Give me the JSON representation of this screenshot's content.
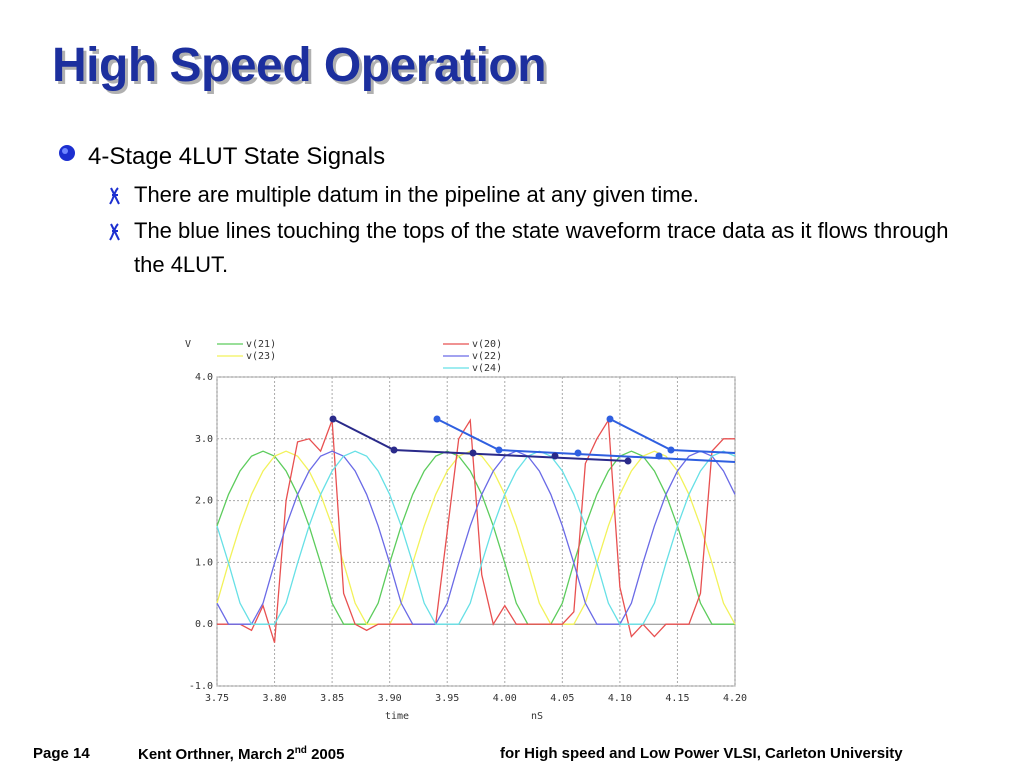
{
  "header": {
    "title": "High Speed Operation"
  },
  "bullets": [
    {
      "text": "4-Stage 4LUT State Signals",
      "subbullets": [
        "There are multiple datum in the pipeline at any given time.",
        "The blue lines touching the tops of the state waveform trace data as it flows through the 4LUT."
      ]
    }
  ],
  "footer": {
    "page": "Page 14",
    "author": "Kent Orthner, March 2",
    "author_sup": "nd",
    "author_year": "2005",
    "event": "for High speed and Low Power VLSI, Carleton University"
  },
  "chart_data": {
    "type": "line",
    "ylabel": "V",
    "xlabel": "time",
    "xlabel_unit": "nS",
    "xlim": [
      3.75,
      4.2
    ],
    "ylim": [
      -1,
      4
    ],
    "xticks": [
      3.75,
      {
        "value": 3.8,
        "label": "3.80"
      },
      3.85,
      {
        "value": 3.9,
        "label": "3.90"
      },
      3.95,
      {
        "value": 4.0,
        "label": "4.00"
      },
      4.05,
      {
        "value": 4.1,
        "label": "4.10"
      },
      4.15,
      {
        "value": 4.2,
        "label": "4.20"
      }
    ],
    "yticks": [
      {
        "value": -1,
        "label": "-1.0"
      },
      {
        "value": 0,
        "label": "0.0"
      },
      {
        "value": 1,
        "label": "1.0"
      },
      {
        "value": 2,
        "label": "2.0"
      },
      {
        "value": 3,
        "label": "3.0"
      },
      {
        "value": 4,
        "label": "4.0"
      }
    ],
    "grid": true,
    "x": [
      3.75,
      3.76,
      3.77,
      3.78,
      3.79,
      3.8,
      3.81,
      3.82,
      3.83,
      3.84,
      3.85,
      3.86,
      3.87,
      3.88,
      3.89,
      3.9,
      3.91,
      3.92,
      3.93,
      3.94,
      3.95,
      3.96,
      3.97,
      3.98,
      3.99,
      4.0,
      4.01,
      4.02,
      4.03,
      4.04,
      4.05,
      4.06,
      4.07,
      4.08,
      4.09,
      4.1,
      4.11,
      4.12,
      4.13,
      4.14,
      4.15,
      4.16,
      4.17,
      4.18,
      4.19,
      4.2
    ],
    "series": [
      {
        "name": "v(21)",
        "color": "#5ccc5c",
        "values": [
          1.59,
          2.1,
          2.48,
          2.72,
          2.8,
          2.72,
          2.48,
          2.1,
          1.59,
          0.99,
          0.34,
          0,
          0,
          0,
          0.34,
          0.99,
          1.59,
          2.1,
          2.48,
          2.72,
          2.8,
          2.72,
          2.48,
          2.1,
          1.59,
          0.99,
          0.34,
          0,
          0,
          0,
          0.34,
          0.99,
          1.59,
          2.1,
          2.48,
          2.72,
          2.8,
          2.72,
          2.48,
          2.1,
          1.59,
          0.99,
          0.34,
          0,
          0,
          0
        ]
      },
      {
        "name": "v(23)",
        "color": "#f2f25a",
        "values": [
          0.34,
          0.99,
          1.59,
          2.1,
          2.48,
          2.72,
          2.8,
          2.72,
          2.48,
          2.1,
          1.59,
          0.99,
          0.34,
          0,
          0,
          0,
          0.34,
          0.99,
          1.59,
          2.1,
          2.48,
          2.72,
          2.8,
          2.72,
          2.48,
          2.1,
          1.59,
          0.99,
          0.34,
          0,
          0,
          0,
          0.34,
          0.99,
          1.59,
          2.1,
          2.48,
          2.72,
          2.8,
          2.72,
          2.48,
          2.1,
          1.59,
          0.99,
          0.34,
          0
        ]
      },
      {
        "name": "v(20)",
        "color": "#e85050",
        "values": [
          0,
          0,
          0,
          -0.1,
          0.3,
          -0.3,
          2,
          2.95,
          3,
          2.8,
          3.3,
          0.5,
          0,
          -0.1,
          0,
          0,
          0,
          0,
          0,
          0,
          1.5,
          3,
          3.3,
          0.8,
          0,
          0.3,
          0,
          0,
          0,
          0,
          0,
          0.2,
          2.6,
          3,
          3.3,
          0.6,
          -0.2,
          0,
          -0.2,
          0,
          0,
          0,
          0.5,
          2.8,
          3,
          3
        ]
      },
      {
        "name": "v(22)",
        "color": "#6a6ae6",
        "values": [
          0.34,
          0,
          0,
          0,
          0.34,
          0.99,
          1.59,
          2.1,
          2.48,
          2.72,
          2.8,
          2.72,
          2.48,
          2.1,
          1.59,
          0.99,
          0.34,
          0,
          0,
          0,
          0.34,
          0.99,
          1.59,
          2.1,
          2.48,
          2.72,
          2.8,
          2.72,
          2.48,
          2.1,
          1.59,
          0.99,
          0.34,
          0,
          0,
          0,
          0.34,
          0.99,
          1.59,
          2.1,
          2.48,
          2.72,
          2.8,
          2.72,
          2.48,
          2.1
        ]
      },
      {
        "name": "v(24)",
        "color": "#66e0e6",
        "values": [
          1.59,
          0.99,
          0.34,
          0,
          0,
          0,
          0.34,
          0.99,
          1.59,
          2.1,
          2.48,
          2.72,
          2.8,
          2.72,
          2.48,
          2.1,
          1.59,
          0.99,
          0.34,
          0,
          0,
          0,
          0.34,
          0.99,
          1.59,
          2.1,
          2.48,
          2.72,
          2.8,
          2.72,
          2.48,
          2.1,
          1.59,
          0.99,
          0.34,
          0,
          0,
          0,
          0.34,
          0.99,
          1.59,
          2.1,
          2.48,
          2.72,
          2.8,
          2.72
        ]
      }
    ]
  }
}
